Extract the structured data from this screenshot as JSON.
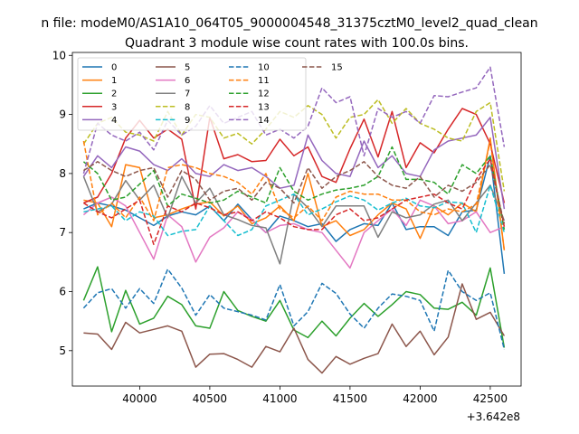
{
  "chart_data": {
    "type": "line",
    "suptitle": "n file: modeM0/AS1A10_064T05_9000004548_31375cztM0_level2_quad_clean",
    "title": "Quadrant 3 module wise count rates with 100.0s bins.",
    "xlabel": "",
    "ylabel": "",
    "x_offset_label": "+3.642e8",
    "xlim": [
      39520,
      42720
    ],
    "ylim": [
      4.4,
      10.05
    ],
    "xticks": [
      39500,
      40000,
      40500,
      41000,
      41500,
      42000,
      42500
    ],
    "yticks": [
      5,
      6,
      7,
      8,
      9,
      10
    ],
    "legend_position": "upper-left",
    "x": [
      39600,
      39700,
      39800,
      39900,
      40000,
      40100,
      40200,
      40300,
      40400,
      40500,
      40600,
      40700,
      40800,
      40900,
      41000,
      41100,
      41200,
      41300,
      41400,
      41500,
      41600,
      41700,
      41800,
      41900,
      42000,
      42100,
      42200,
      42300,
      42400,
      42500,
      42600
    ],
    "series": [
      {
        "name": "0",
        "color": "#1f77b4",
        "dash": "solid",
        "values": [
          7.4,
          7.5,
          7.45,
          7.38,
          7.25,
          7.12,
          7.28,
          7.35,
          7.3,
          7.45,
          7.2,
          7.48,
          7.22,
          7.0,
          7.28,
          7.2,
          7.1,
          7.15,
          6.85,
          7.05,
          7.15,
          7.12,
          7.5,
          7.05,
          7.1,
          7.1,
          6.95,
          7.35,
          7.38,
          8.3,
          6.3
        ]
      },
      {
        "name": "1",
        "color": "#ff7f0e",
        "dash": "solid",
        "values": [
          7.55,
          7.5,
          7.1,
          8.15,
          8.1,
          7.25,
          7.3,
          7.4,
          7.48,
          7.52,
          7.28,
          7.45,
          7.15,
          7.25,
          7.45,
          7.2,
          8.0,
          7.1,
          7.2,
          6.95,
          7.05,
          7.3,
          7.5,
          7.4,
          6.9,
          7.45,
          7.3,
          7.5,
          7.35,
          8.6,
          6.7
        ]
      },
      {
        "name": "2",
        "color": "#2ca02c",
        "dash": "solid",
        "values": [
          5.85,
          6.42,
          5.32,
          6.02,
          5.45,
          5.55,
          5.92,
          5.78,
          5.42,
          5.38,
          6.0,
          5.68,
          5.58,
          5.5,
          5.85,
          5.35,
          5.22,
          5.5,
          5.25,
          5.55,
          5.8,
          5.58,
          5.78,
          6.0,
          5.95,
          5.72,
          5.7,
          5.82,
          5.6,
          6.4,
          5.05
        ]
      },
      {
        "name": "3",
        "color": "#d62728",
        "dash": "solid",
        "values": [
          7.5,
          7.6,
          8.0,
          8.6,
          8.9,
          8.6,
          8.75,
          8.58,
          7.4,
          8.95,
          8.25,
          8.32,
          8.2,
          8.22,
          8.58,
          8.3,
          8.45,
          7.95,
          7.85,
          8.42,
          8.92,
          8.28,
          9.05,
          8.1,
          8.52,
          8.35,
          8.75,
          9.1,
          9.0,
          8.5,
          7.5
        ]
      },
      {
        "name": "4",
        "color": "#9467bd",
        "dash": "solid",
        "values": [
          7.95,
          8.3,
          8.1,
          8.45,
          8.38,
          8.15,
          8.05,
          8.25,
          8.0,
          7.95,
          8.15,
          8.05,
          8.1,
          7.95,
          7.75,
          7.8,
          8.65,
          8.22,
          8.0,
          7.95,
          8.55,
          8.1,
          8.3,
          8.0,
          7.95,
          8.4,
          8.55,
          8.6,
          8.65,
          8.95,
          7.4
        ]
      },
      {
        "name": "5",
        "color": "#8c564b",
        "dash": "solid",
        "values": [
          5.3,
          5.28,
          5.02,
          5.48,
          5.3,
          5.36,
          5.42,
          5.33,
          4.72,
          4.94,
          4.95,
          4.85,
          4.72,
          5.07,
          4.98,
          5.38,
          4.85,
          4.62,
          4.9,
          4.77,
          4.87,
          4.95,
          5.45,
          5.07,
          5.33,
          4.93,
          5.23,
          6.13,
          5.53,
          5.65,
          5.25
        ]
      },
      {
        "name": "6",
        "color": "#e377c2",
        "dash": "solid",
        "values": [
          7.3,
          7.5,
          7.6,
          7.45,
          7.0,
          6.55,
          7.3,
          7.1,
          6.5,
          6.92,
          7.08,
          7.35,
          7.22,
          7.0,
          7.12,
          7.15,
          7.05,
          7.0,
          6.7,
          6.4,
          7.0,
          7.2,
          7.4,
          7.12,
          7.55,
          7.45,
          7.15,
          7.2,
          7.35,
          7.0,
          7.1
        ]
      },
      {
        "name": "7",
        "color": "#7f7f7f",
        "dash": "solid",
        "values": [
          7.95,
          7.35,
          7.48,
          7.88,
          7.55,
          7.8,
          7.25,
          7.95,
          7.5,
          7.75,
          7.3,
          7.22,
          7.12,
          7.08,
          6.47,
          7.65,
          7.42,
          7.1,
          7.45,
          7.45,
          7.45,
          6.92,
          7.35,
          7.25,
          7.3,
          7.48,
          7.55,
          7.2,
          7.5,
          7.8,
          7.2
        ]
      },
      {
        "name": "8",
        "color": "#bcbd22",
        "dash": "dashed",
        "values": [
          8.5,
          8.85,
          8.95,
          8.7,
          8.65,
          8.55,
          9.05,
          8.65,
          9.0,
          8.95,
          8.6,
          8.68,
          8.5,
          8.75,
          9.05,
          8.95,
          9.15,
          9.0,
          8.6,
          8.95,
          9.0,
          9.25,
          8.85,
          9.1,
          8.85,
          8.75,
          8.6,
          8.55,
          9.05,
          9.2,
          7.7
        ]
      },
      {
        "name": "9",
        "color": "#17becf",
        "dash": "dashed",
        "values": [
          7.35,
          7.4,
          7.45,
          7.2,
          7.35,
          7.28,
          6.95,
          7.02,
          7.05,
          7.45,
          7.2,
          6.95,
          7.05,
          7.45,
          7.55,
          7.65,
          7.3,
          7.4,
          7.52,
          7.62,
          7.55,
          7.38,
          7.5,
          7.58,
          7.45,
          7.42,
          7.52,
          7.5,
          7.0,
          7.8,
          7.0
        ]
      },
      {
        "name": "10",
        "color": "#1f77b4",
        "dash": "dashed",
        "values": [
          5.72,
          5.98,
          6.05,
          5.72,
          6.05,
          5.8,
          6.38,
          6.06,
          5.6,
          5.95,
          5.72,
          5.66,
          5.6,
          5.52,
          6.12,
          5.42,
          5.66,
          6.14,
          5.97,
          5.62,
          5.38,
          5.72,
          5.96,
          5.92,
          5.85,
          5.33,
          6.36,
          6.0,
          5.85,
          5.98,
          5.02
        ]
      },
      {
        "name": "11",
        "color": "#ff7f0e",
        "dash": "dashed",
        "values": [
          8.55,
          7.3,
          7.5,
          7.25,
          7.6,
          7.2,
          8.1,
          8.15,
          8.1,
          8.0,
          7.95,
          7.85,
          7.65,
          8.0,
          7.4,
          7.25,
          7.45,
          7.2,
          7.6,
          7.7,
          7.65,
          7.65,
          7.55,
          7.55,
          7.35,
          7.3,
          7.4,
          7.35,
          7.48,
          8.55,
          6.7
        ]
      },
      {
        "name": "12",
        "color": "#2ca02c",
        "dash": "dashed",
        "values": [
          8.2,
          8.0,
          7.55,
          7.6,
          7.82,
          8.05,
          7.45,
          7.65,
          7.58,
          7.5,
          7.55,
          7.7,
          7.6,
          7.5,
          8.1,
          7.7,
          7.55,
          7.65,
          7.72,
          7.75,
          7.8,
          7.95,
          8.45,
          7.9,
          7.9,
          7.85,
          7.65,
          8.15,
          8.0,
          8.3,
          7.05
        ]
      },
      {
        "name": "13",
        "color": "#d62728",
        "dash": "dashed",
        "values": [
          7.5,
          7.35,
          7.25,
          7.4,
          7.55,
          6.8,
          7.45,
          7.35,
          7.5,
          7.42,
          7.3,
          7.35,
          7.2,
          7.35,
          7.25,
          7.1,
          7.05,
          7.05,
          7.3,
          7.4,
          7.2,
          7.25,
          7.4,
          7.55,
          7.6,
          7.65,
          7.5,
          7.4,
          7.9,
          8.25,
          7.1
        ]
      },
      {
        "name": "14",
        "color": "#9467bd",
        "dash": "dashed",
        "values": [
          8.0,
          8.85,
          8.65,
          8.55,
          8.7,
          8.4,
          8.9,
          8.65,
          8.8,
          9.15,
          8.85,
          8.95,
          9.05,
          8.65,
          8.75,
          8.6,
          8.8,
          9.45,
          9.2,
          9.3,
          8.3,
          9.1,
          8.95,
          9.05,
          8.85,
          9.32,
          9.3,
          9.38,
          9.45,
          9.8,
          8.45
        ]
      },
      {
        "name": "15",
        "color": "#8c564b",
        "dash": "dashed",
        "values": [
          8.05,
          8.2,
          8.05,
          7.95,
          8.05,
          8.1,
          7.6,
          8.05,
          7.9,
          7.55,
          7.7,
          7.75,
          7.55,
          7.85,
          7.75,
          7.5,
          8.1,
          7.75,
          7.95,
          8.05,
          8.2,
          7.95,
          7.8,
          7.75,
          7.95,
          7.6,
          7.8,
          7.7,
          7.85,
          8.15,
          7.15
        ]
      }
    ]
  }
}
